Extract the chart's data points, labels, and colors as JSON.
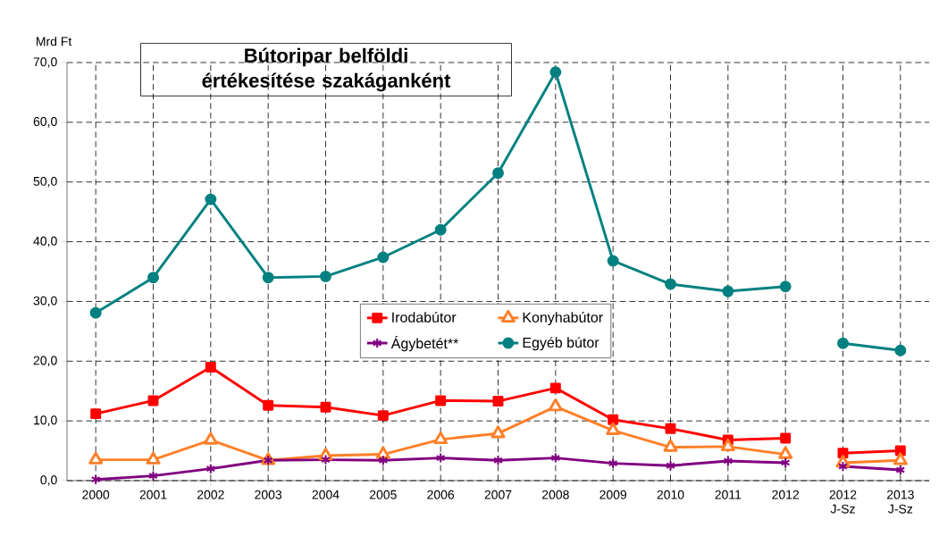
{
  "chart_data": {
    "type": "line",
    "title": "Bútoripar belföldi értékesítése szakáganként",
    "ylabel": "Mrd Ft",
    "categories": [
      "2000",
      "2001",
      "2002",
      "2003",
      "2004",
      "2005",
      "2006",
      "2007",
      "2008",
      "2009",
      "2010",
      "2011",
      "2012",
      "2012 J-Sz",
      "2013 J-Sz"
    ],
    "series": [
      {
        "name": "Irodabútor",
        "color": "#ff0000",
        "marker": "square",
        "values": [
          11.2,
          13.4,
          19.0,
          12.6,
          12.3,
          10.9,
          13.4,
          13.3,
          15.5,
          10.2,
          8.7,
          6.8,
          7.1,
          null,
          null
        ]
      },
      {
        "name": "Konyhabútor",
        "color": "#ff7f27",
        "marker": "triangle",
        "values": [
          3.5,
          3.5,
          6.8,
          3.4,
          4.2,
          4.4,
          6.9,
          7.9,
          12.4,
          8.4,
          5.6,
          5.7,
          4.4,
          null,
          null
        ]
      },
      {
        "name": "Ágybetét**",
        "color": "#800080",
        "marker": "cross",
        "values": [
          0.2,
          0.8,
          2.0,
          3.4,
          3.5,
          3.4,
          3.8,
          3.4,
          3.8,
          2.9,
          2.5,
          3.3,
          3.0,
          null,
          null
        ]
      },
      {
        "name": "Egyéb bútor",
        "color": "#008080",
        "marker": "circle",
        "values": [
          28.1,
          34.0,
          47.1,
          34.0,
          34.2,
          37.4,
          42.0,
          51.5,
          68.4,
          36.8,
          32.9,
          31.7,
          32.5,
          null,
          null
        ]
      },
      {
        "color": "#ff0000",
        "marker": "square",
        "values": [
          null,
          null,
          null,
          null,
          null,
          null,
          null,
          null,
          null,
          null,
          null,
          null,
          null,
          4.6,
          5.0
        ]
      },
      {
        "color": "#ff7f27",
        "marker": "triangle",
        "values": [
          null,
          null,
          null,
          null,
          null,
          null,
          null,
          null,
          null,
          null,
          null,
          null,
          null,
          3.0,
          3.4
        ]
      },
      {
        "color": "#800080",
        "marker": "cross",
        "values": [
          null,
          null,
          null,
          null,
          null,
          null,
          null,
          null,
          null,
          null,
          null,
          null,
          null,
          2.4,
          1.8
        ]
      },
      {
        "color": "#008080",
        "marker": "circle",
        "values": [
          null,
          null,
          null,
          null,
          null,
          null,
          null,
          null,
          null,
          null,
          null,
          null,
          null,
          23.0,
          21.8
        ]
      }
    ],
    "ylim": [
      0,
      70
    ],
    "yticks": [
      {
        "value": 0,
        "label": "0,0"
      },
      {
        "value": 10,
        "label": "10,0"
      },
      {
        "value": 20,
        "label": "20,0"
      },
      {
        "value": 30,
        "label": "30,0"
      },
      {
        "value": 40,
        "label": "40,0"
      },
      {
        "value": 50,
        "label": "50,0"
      },
      {
        "value": 60,
        "label": "60,0"
      },
      {
        "value": 70,
        "label": "70,0"
      }
    ],
    "grid": true,
    "legend": "center",
    "line_style": "solid"
  }
}
